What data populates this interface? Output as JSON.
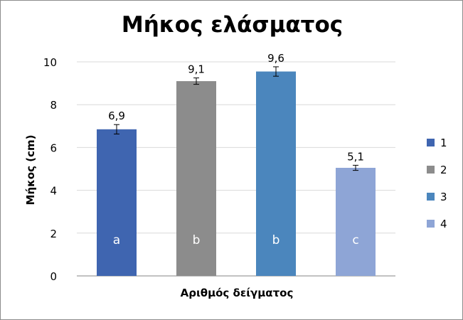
{
  "chart_data": {
    "type": "bar",
    "title": "Μήκος ελάσματος",
    "xlabel": "Αριθμός δείγματος",
    "ylabel": "Μήκος (cm)",
    "ylim": [
      0,
      10
    ],
    "yticks": [
      "0",
      "2",
      "4",
      "6",
      "8",
      "10"
    ],
    "grid": true,
    "legend_position": "right",
    "categories": [
      "1",
      "2",
      "3",
      "4"
    ],
    "values": [
      6.85,
      9.1,
      9.55,
      5.05
    ],
    "data_labels": [
      "6,9",
      "9,1",
      "9,6",
      "5,1"
    ],
    "error": [
      0.22,
      0.15,
      0.22,
      0.12
    ],
    "letters": [
      "a",
      "b",
      "b",
      "c"
    ],
    "colors": [
      "#3f65b0",
      "#8c8c8c",
      "#4b86bd",
      "#8ea5d6"
    ],
    "legend": [
      {
        "label": "1",
        "color": "#3f65b0"
      },
      {
        "label": "2",
        "color": "#8c8c8c"
      },
      {
        "label": "3",
        "color": "#4b86bd"
      },
      {
        "label": "4",
        "color": "#8ea5d6"
      }
    ]
  }
}
